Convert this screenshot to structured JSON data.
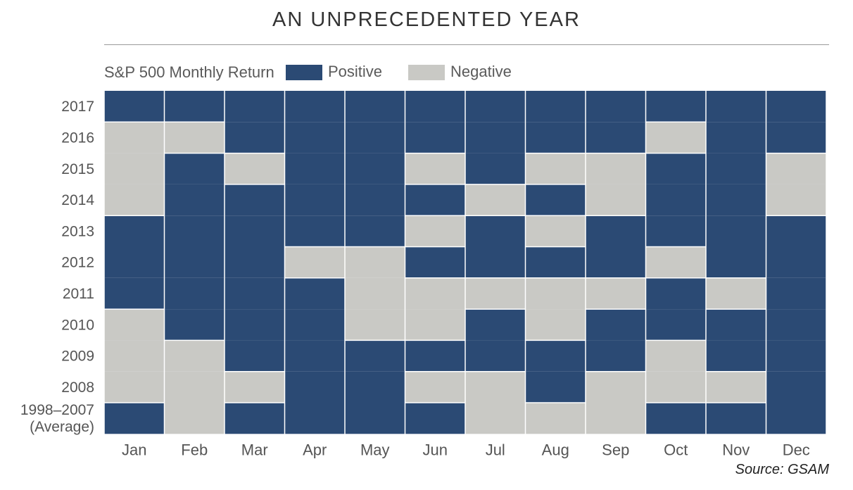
{
  "title": "AN UNPRECEDENTED YEAR",
  "legend": {
    "label": "S&P 500 Monthly Return",
    "positive": "Positive",
    "negative": "Negative"
  },
  "colors": {
    "positive": "#2b4a74",
    "negative": "#c9c9c5"
  },
  "source": "Source:  GSAM",
  "chart_data": {
    "type": "heatmap",
    "title": "AN UNPRECEDENTED YEAR",
    "x": [
      "Jan",
      "Feb",
      "Mar",
      "Apr",
      "May",
      "Jun",
      "Jul",
      "Aug",
      "Sep",
      "Oct",
      "Nov",
      "Dec"
    ],
    "y": [
      "2017",
      "2016",
      "2015",
      "2014",
      "2013",
      "2012",
      "2011",
      "2010",
      "2009",
      "2008",
      "1998–2007|(Average)"
    ],
    "values_legend": {
      "1": "Positive",
      "0": "Negative"
    },
    "values": [
      [
        1,
        1,
        1,
        1,
        1,
        1,
        1,
        1,
        1,
        1,
        1,
        1
      ],
      [
        0,
        0,
        1,
        1,
        1,
        1,
        1,
        1,
        1,
        0,
        1,
        1
      ],
      [
        0,
        1,
        0,
        1,
        1,
        0,
        1,
        0,
        0,
        1,
        1,
        0
      ],
      [
        0,
        1,
        1,
        1,
        1,
        1,
        0,
        1,
        0,
        1,
        1,
        0
      ],
      [
        1,
        1,
        1,
        1,
        1,
        0,
        1,
        0,
        1,
        1,
        1,
        1
      ],
      [
        1,
        1,
        1,
        0,
        0,
        1,
        1,
        1,
        1,
        0,
        1,
        1
      ],
      [
        1,
        1,
        1,
        1,
        0,
        0,
        0,
        0,
        0,
        1,
        0,
        1
      ],
      [
        0,
        1,
        1,
        1,
        0,
        0,
        1,
        0,
        1,
        1,
        1,
        1
      ],
      [
        0,
        0,
        1,
        1,
        1,
        1,
        1,
        1,
        1,
        0,
        1,
        1
      ],
      [
        0,
        0,
        0,
        1,
        1,
        0,
        0,
        1,
        0,
        0,
        0,
        1
      ],
      [
        1,
        0,
        1,
        1,
        1,
        1,
        0,
        0,
        0,
        1,
        1,
        1
      ]
    ]
  }
}
